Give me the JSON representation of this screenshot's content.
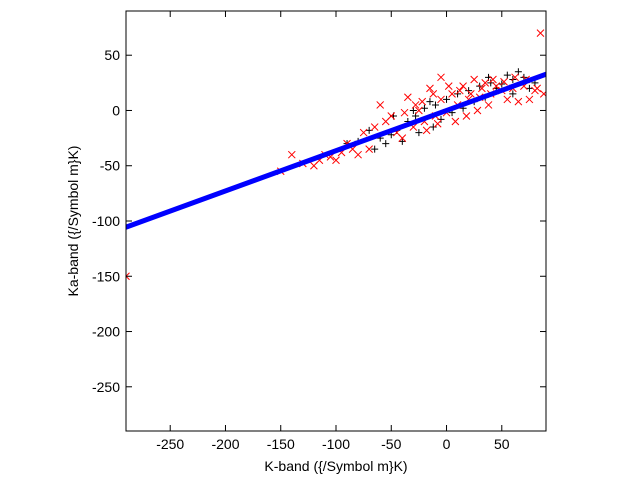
{
  "chart_data": {
    "type": "scatter",
    "title": "",
    "xlabel": "K-band ({/Symbol m}K)",
    "ylabel": "Ka-band ({/Symbol m}K)",
    "xlim": [
      -290,
      90
    ],
    "ylim": [
      -290,
      90
    ],
    "xticks": [
      -250,
      -200,
      -150,
      -100,
      -50,
      0,
      50
    ],
    "yticks": [
      -250,
      -200,
      -150,
      -100,
      -50,
      0,
      50
    ],
    "xtick_labels": [
      "-250",
      "-200",
      "-150",
      "-100",
      "-50",
      "0",
      "50"
    ],
    "ytick_labels": [
      "-250",
      "-200",
      "-150",
      "-100",
      "-50",
      "0",
      "50"
    ],
    "grid": false,
    "legend": "none",
    "fit_line": {
      "name": "",
      "color": "#0000ff",
      "slope": 0.364,
      "intercept": 0.0,
      "x_range": [
        -290,
        90
      ]
    },
    "series": [
      {
        "name": "",
        "marker": "plus",
        "color": "#000000",
        "points": [
          [
            -35,
            -10
          ],
          [
            -28,
            -5
          ],
          [
            -20,
            2
          ],
          [
            -45,
            -18
          ],
          [
            -50,
            -22
          ],
          [
            -60,
            -25
          ],
          [
            -70,
            -18
          ],
          [
            -80,
            -28
          ],
          [
            -15,
            8
          ],
          [
            -10,
            5
          ],
          [
            0,
            10
          ],
          [
            10,
            15
          ],
          [
            20,
            18
          ],
          [
            30,
            22
          ],
          [
            40,
            25
          ],
          [
            50,
            24
          ],
          [
            60,
            28
          ],
          [
            65,
            35
          ],
          [
            70,
            30
          ],
          [
            55,
            32
          ],
          [
            45,
            20
          ],
          [
            35,
            12
          ],
          [
            25,
            8
          ],
          [
            15,
            2
          ],
          [
            5,
            -2
          ],
          [
            -5,
            -8
          ],
          [
            -25,
            -20
          ],
          [
            -40,
            -28
          ],
          [
            -55,
            -30
          ],
          [
            -65,
            -35
          ],
          [
            -30,
            0
          ],
          [
            -48,
            -5
          ],
          [
            75,
            20
          ],
          [
            80,
            25
          ],
          [
            60,
            15
          ],
          [
            -90,
            -30
          ],
          [
            -12,
            -15
          ],
          [
            38,
            30
          ]
        ]
      },
      {
        "name": "",
        "marker": "cross",
        "color": "#ff0000",
        "points": [
          [
            -290,
            -150
          ],
          [
            85,
            70
          ],
          [
            -5,
            30
          ],
          [
            25,
            28
          ],
          [
            -15,
            20
          ],
          [
            -35,
            12
          ],
          [
            -60,
            5
          ],
          [
            -55,
            -10
          ],
          [
            -45,
            -20
          ],
          [
            -30,
            -15
          ],
          [
            -20,
            -10
          ],
          [
            -10,
            -5
          ],
          [
            0,
            -2
          ],
          [
            10,
            5
          ],
          [
            20,
            10
          ],
          [
            30,
            12
          ],
          [
            40,
            15
          ],
          [
            50,
            18
          ],
          [
            60,
            20
          ],
          [
            70,
            22
          ],
          [
            80,
            18
          ],
          [
            -100,
            -45
          ],
          [
            -120,
            -50
          ],
          [
            -140,
            -40
          ],
          [
            -80,
            -40
          ],
          [
            -70,
            -35
          ],
          [
            -40,
            -25
          ],
          [
            5,
            15
          ],
          [
            15,
            22
          ],
          [
            35,
            25
          ],
          [
            45,
            22
          ],
          [
            55,
            10
          ],
          [
            65,
            8
          ],
          [
            75,
            10
          ],
          [
            -25,
            0
          ],
          [
            -50,
            -5
          ],
          [
            -65,
            -15
          ],
          [
            -90,
            -30
          ],
          [
            -110,
            -40
          ],
          [
            -5,
            10
          ],
          [
            8,
            -10
          ],
          [
            18,
            -5
          ],
          [
            28,
            0
          ],
          [
            38,
            5
          ],
          [
            -12,
            15
          ],
          [
            -22,
            8
          ],
          [
            2,
            22
          ],
          [
            12,
            18
          ],
          [
            22,
            15
          ],
          [
            32,
            20
          ],
          [
            42,
            28
          ],
          [
            52,
            26
          ],
          [
            62,
            30
          ],
          [
            72,
            28
          ],
          [
            82,
            20
          ],
          [
            -75,
            -20
          ],
          [
            -85,
            -35
          ],
          [
            -95,
            -38
          ],
          [
            -105,
            -42
          ],
          [
            -115,
            -45
          ],
          [
            -130,
            -48
          ],
          [
            -150,
            -55
          ],
          [
            -38,
            -2
          ],
          [
            -28,
            5
          ],
          [
            -18,
            -18
          ],
          [
            -8,
            -12
          ],
          [
            88,
            15
          ]
        ]
      }
    ]
  }
}
